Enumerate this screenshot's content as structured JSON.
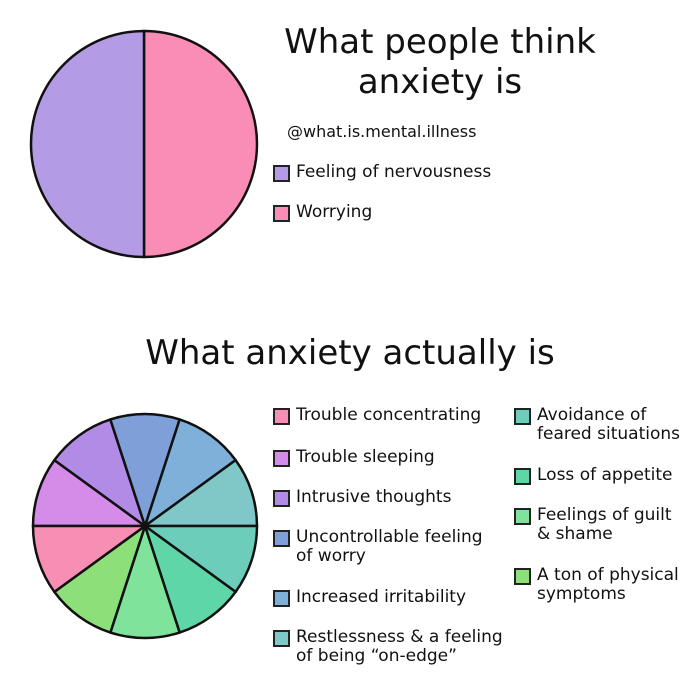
{
  "chart_data": [
    {
      "type": "pie",
      "title": "What people think anxiety is",
      "subtitle": "@what.is.mental.illness",
      "legend_placement": "right",
      "slices": [
        {
          "label": "Feeling of nervousness",
          "value": 50,
          "color": "#b49be6"
        },
        {
          "label": "Worrying",
          "value": 50,
          "color": "#f98db5"
        }
      ]
    },
    {
      "type": "pie",
      "title": "What anxiety actually is",
      "legend_placement": "right",
      "slices": [
        {
          "label": "Trouble concentrating",
          "value": 10,
          "color": "#f78fb5"
        },
        {
          "label": "Trouble sleeping",
          "value": 10,
          "color": "#d48ce8"
        },
        {
          "label": "Intrusive thoughts",
          "value": 10,
          "color": "#b18be6"
        },
        {
          "label": "Uncontrollable feeling\nof worry",
          "value": 10,
          "color": "#7f9fd9"
        },
        {
          "label": "Increased irritability",
          "value": 10,
          "color": "#7fb0d9"
        },
        {
          "label": "Restlessness & a feeling\nof being “on-edge”",
          "value": 10,
          "color": "#80c8c8"
        },
        {
          "label": "Avoidance of\nfeared situations",
          "value": 10,
          "color": "#6ccdbb"
        },
        {
          "label": "Loss of appetite",
          "value": 10,
          "color": "#5fd6a8"
        },
        {
          "label": "Feelings of guilt\n& shame",
          "value": 10,
          "color": "#80e39c"
        },
        {
          "label": "A ton of physical\nsymptoms",
          "value": 10,
          "color": "#8ddf7a"
        }
      ]
    }
  ]
}
